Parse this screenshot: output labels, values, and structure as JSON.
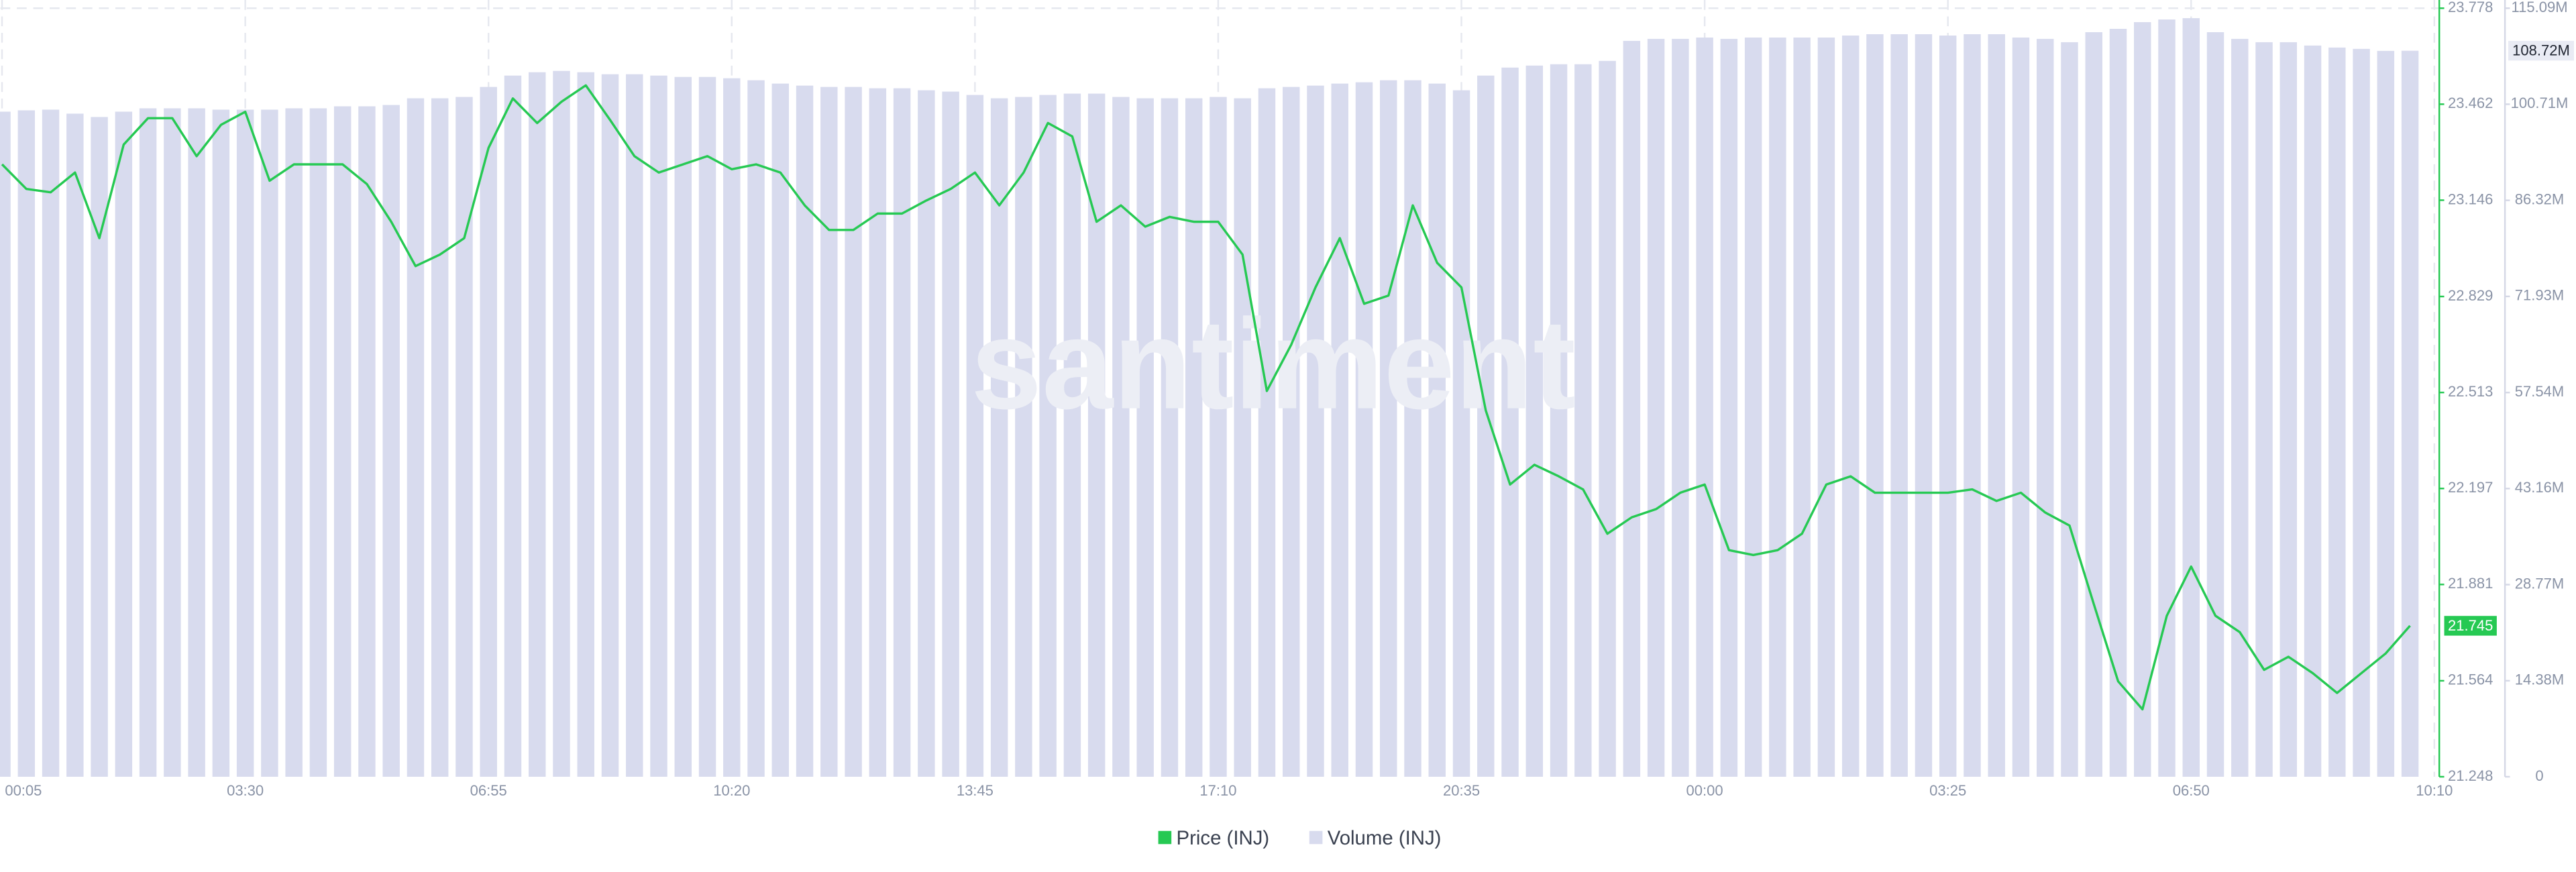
{
  "chart_data": {
    "type": "combo",
    "watermark": "santiment",
    "categories": [
      "00:05",
      null,
      null,
      null,
      null,
      null,
      null,
      null,
      null,
      null,
      "03:30",
      null,
      null,
      null,
      null,
      null,
      null,
      null,
      null,
      null,
      "06:55",
      null,
      null,
      null,
      null,
      null,
      null,
      null,
      null,
      null,
      "10:20",
      null,
      null,
      null,
      null,
      null,
      null,
      null,
      null,
      null,
      "13:45",
      null,
      null,
      null,
      null,
      null,
      null,
      null,
      null,
      null,
      "17:10",
      null,
      null,
      null,
      null,
      null,
      null,
      null,
      null,
      null,
      "20:35",
      null,
      null,
      null,
      null,
      null,
      null,
      null,
      null,
      null,
      "00:00",
      null,
      null,
      null,
      null,
      null,
      null,
      null,
      null,
      null,
      "03:25",
      null,
      null,
      null,
      null,
      null,
      null,
      null,
      null,
      null,
      "06:50",
      null,
      null,
      null,
      null,
      null,
      null,
      null,
      null,
      null,
      "10:10"
    ],
    "series": [
      {
        "name": "Price (INJ)",
        "type": "line",
        "color": "#26c953",
        "axis": "y",
        "values": [
          23.264,
          23.183,
          23.172,
          23.237,
          23.021,
          23.329,
          23.416,
          23.416,
          23.291,
          23.394,
          23.437,
          23.21,
          23.264,
          23.264,
          23.264,
          23.199,
          23.075,
          22.929,
          22.967,
          23.021,
          23.318,
          23.481,
          23.4,
          23.47,
          23.524,
          23.41,
          23.291,
          23.237,
          23.264,
          23.291,
          23.248,
          23.264,
          23.237,
          23.129,
          23.048,
          23.048,
          23.102,
          23.102,
          23.145,
          23.183,
          23.237,
          23.129,
          23.237,
          23.4,
          23.356,
          23.075,
          23.129,
          23.059,
          23.091,
          23.075,
          23.075,
          22.967,
          22.518,
          22.67,
          22.859,
          23.021,
          22.805,
          22.832,
          23.129,
          22.94,
          22.859,
          22.454,
          22.21,
          22.275,
          22.237,
          22.194,
          22.048,
          22.102,
          22.129,
          22.183,
          22.21,
          21.994,
          21.978,
          21.994,
          22.048,
          22.21,
          22.237,
          22.183,
          22.183,
          22.183,
          22.183,
          22.194,
          22.156,
          22.183,
          22.118,
          22.075,
          21.816,
          21.562,
          21.47,
          21.778,
          21.94,
          21.778,
          21.724,
          21.6,
          21.643,
          21.589,
          21.524,
          21.589,
          21.654,
          21.745,
          null
        ]
      },
      {
        "name": "Volume (INJ)",
        "type": "bar",
        "color": "#d8dbee",
        "axis": "y2",
        "values": [
          99.6,
          99.8,
          99.9,
          99.3,
          98.8,
          99.6,
          100.1,
          100.1,
          100.1,
          99.9,
          99.9,
          99.9,
          100.1,
          100.1,
          100.4,
          100.4,
          100.6,
          101.6,
          101.6,
          101.8,
          103.3,
          105.0,
          105.5,
          105.7,
          105.5,
          105.2,
          105.2,
          105.0,
          104.8,
          104.8,
          104.6,
          104.3,
          103.8,
          103.5,
          103.3,
          103.3,
          103.1,
          103.1,
          102.8,
          102.6,
          102.1,
          101.6,
          101.8,
          102.1,
          102.3,
          102.3,
          101.8,
          101.6,
          101.6,
          101.6,
          101.8,
          101.6,
          103.1,
          103.3,
          103.5,
          103.8,
          104.0,
          104.3,
          104.3,
          103.8,
          102.8,
          105.0,
          106.2,
          106.5,
          106.7,
          106.7,
          107.2,
          110.2,
          110.5,
          110.5,
          110.7,
          110.5,
          110.7,
          110.7,
          110.7,
          110.7,
          111.0,
          111.2,
          111.2,
          111.2,
          111.0,
          111.2,
          111.2,
          110.7,
          110.5,
          110.0,
          111.5,
          112.0,
          113.0,
          113.4,
          113.6,
          111.5,
          110.5,
          110.0,
          110.0,
          109.5,
          109.2,
          109.0,
          108.7,
          108.72,
          null
        ]
      }
    ],
    "ylim": [
      21.248,
      23.778
    ],
    "yticks": [
      21.248,
      21.564,
      21.881,
      22.197,
      22.513,
      22.829,
      23.146,
      23.462,
      23.778
    ],
    "y2lim": [
      0,
      115.09
    ],
    "y2ticks": [
      0,
      {
        "value": 14.38,
        "label": "14.38M"
      },
      {
        "value": 28.77,
        "label": "28.77M"
      },
      {
        "value": 43.16,
        "label": "43.16M"
      },
      {
        "value": 57.54,
        "label": "57.54M"
      },
      {
        "value": 71.93,
        "label": "71.93M"
      },
      {
        "value": 86.32,
        "label": "86.32M"
      },
      {
        "value": 100.71,
        "label": "100.71M"
      },
      {
        "value": 115.09,
        "label": "115.09M"
      }
    ],
    "last_volume": {
      "value": 108.72,
      "label": "108.72M"
    },
    "grid": true,
    "legend": "bottom"
  }
}
